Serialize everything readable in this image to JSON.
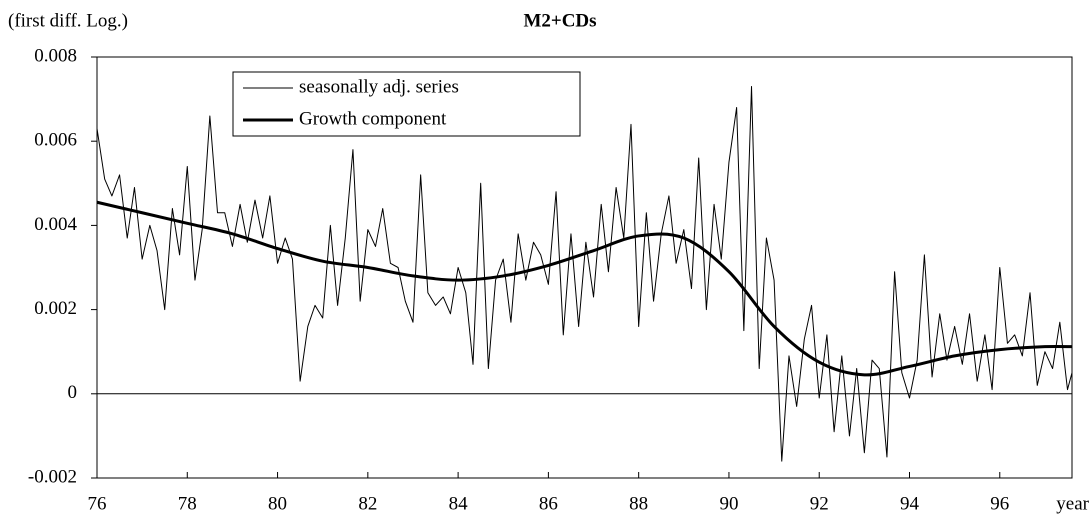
{
  "chart_data": {
    "type": "line",
    "title": "M2+CDs",
    "y_label": "(first diff. Log.)",
    "x_label": "year",
    "xlim": [
      76,
      97.6
    ],
    "xticks": [
      76,
      78,
      80,
      82,
      84,
      86,
      88,
      90,
      92,
      94,
      96
    ],
    "ylim": [
      -0.002,
      0.008
    ],
    "yticks": [
      0.008,
      0.006,
      0.004,
      0.002,
      0,
      -0.002
    ],
    "zero_line": true,
    "series": [
      {
        "name": "seasonally adj. series",
        "color": "#000000",
        "width": 1,
        "x": [
          76,
          76.17,
          76.33,
          76.5,
          76.67,
          76.83,
          77,
          77.17,
          77.33,
          77.5,
          77.67,
          77.83,
          78,
          78.17,
          78.33,
          78.5,
          78.67,
          78.83,
          79,
          79.17,
          79.33,
          79.5,
          79.67,
          79.83,
          80,
          80.17,
          80.33,
          80.5,
          80.67,
          80.83,
          81,
          81.17,
          81.33,
          81.5,
          81.67,
          81.83,
          82,
          82.17,
          82.33,
          82.5,
          82.67,
          82.83,
          83,
          83.17,
          83.33,
          83.5,
          83.67,
          83.83,
          84,
          84.17,
          84.33,
          84.5,
          84.67,
          84.83,
          85,
          85.17,
          85.33,
          85.5,
          85.67,
          85.83,
          86,
          86.17,
          86.33,
          86.5,
          86.67,
          86.83,
          87,
          87.17,
          87.33,
          87.5,
          87.67,
          87.83,
          88,
          88.17,
          88.33,
          88.5,
          88.67,
          88.83,
          89,
          89.17,
          89.33,
          89.5,
          89.67,
          89.83,
          90,
          90.17,
          90.33,
          90.5,
          90.67,
          90.83,
          91,
          91.17,
          91.33,
          91.5,
          91.67,
          91.83,
          92,
          92.17,
          92.33,
          92.5,
          92.67,
          92.83,
          93,
          93.17,
          93.33,
          93.5,
          93.67,
          93.83,
          94,
          94.17,
          94.33,
          94.5,
          94.67,
          94.83,
          95,
          95.17,
          95.33,
          95.5,
          95.67,
          95.83,
          96,
          96.17,
          96.33,
          96.5,
          96.67,
          96.83,
          97,
          97.17,
          97.33,
          97.5,
          97.6
        ],
        "values": [
          0.0063,
          0.0051,
          0.0047,
          0.0052,
          0.0037,
          0.0049,
          0.0032,
          0.004,
          0.0034,
          0.002,
          0.0044,
          0.0033,
          0.0054,
          0.0027,
          0.0039,
          0.0066,
          0.0043,
          0.0043,
          0.0035,
          0.0045,
          0.0036,
          0.0046,
          0.0037,
          0.0047,
          0.0031,
          0.0037,
          0.0032,
          0.0003,
          0.0016,
          0.0021,
          0.0018,
          0.004,
          0.0021,
          0.0037,
          0.0058,
          0.0022,
          0.0039,
          0.0035,
          0.0044,
          0.0031,
          0.003,
          0.0022,
          0.0017,
          0.0052,
          0.0024,
          0.0021,
          0.0023,
          0.0019,
          0.003,
          0.0024,
          0.0007,
          0.005,
          0.0006,
          0.0027,
          0.0032,
          0.0017,
          0.0038,
          0.0027,
          0.0036,
          0.0033,
          0.0026,
          0.0048,
          0.0014,
          0.0038,
          0.0016,
          0.0036,
          0.0023,
          0.0045,
          0.0029,
          0.0049,
          0.0037,
          0.0064,
          0.0016,
          0.0043,
          0.0022,
          0.0038,
          0.0047,
          0.0031,
          0.0039,
          0.0025,
          0.0056,
          0.002,
          0.0045,
          0.0032,
          0.0055,
          0.0068,
          0.0015,
          0.0073,
          0.0006,
          0.0037,
          0.0027,
          -0.0016,
          0.0009,
          -0.0003,
          0.0013,
          0.0021,
          -0.0001,
          0.0014,
          -0.0009,
          0.0009,
          -0.001,
          0.0006,
          -0.0014,
          0.0008,
          0.0006,
          -0.0015,
          0.0029,
          0.0005,
          -0.0001,
          0.0008,
          0.0033,
          0.0004,
          0.0019,
          0.0008,
          0.0016,
          0.0007,
          0.0019,
          0.0003,
          0.0014,
          0.0001,
          0.003,
          0.0012,
          0.0014,
          0.0009,
          0.0024,
          0.0002,
          0.001,
          0.0006,
          0.0017,
          0.0001,
          0.0005
        ]
      },
      {
        "name": "Growth component",
        "color": "#000000",
        "width": 3,
        "x": [
          76,
          77,
          78,
          79,
          80,
          81,
          82,
          83,
          84,
          85,
          86,
          87,
          88,
          89,
          90,
          91,
          92,
          93,
          94,
          95,
          96,
          97,
          97.6
        ],
        "values": [
          0.00455,
          0.0043,
          0.00405,
          0.0038,
          0.00345,
          0.00315,
          0.003,
          0.0028,
          0.0027,
          0.0028,
          0.00305,
          0.0034,
          0.00375,
          0.0037,
          0.0029,
          0.0016,
          0.00075,
          0.00045,
          0.00065,
          0.0009,
          0.00105,
          0.00112,
          0.00112
        ]
      }
    ]
  }
}
